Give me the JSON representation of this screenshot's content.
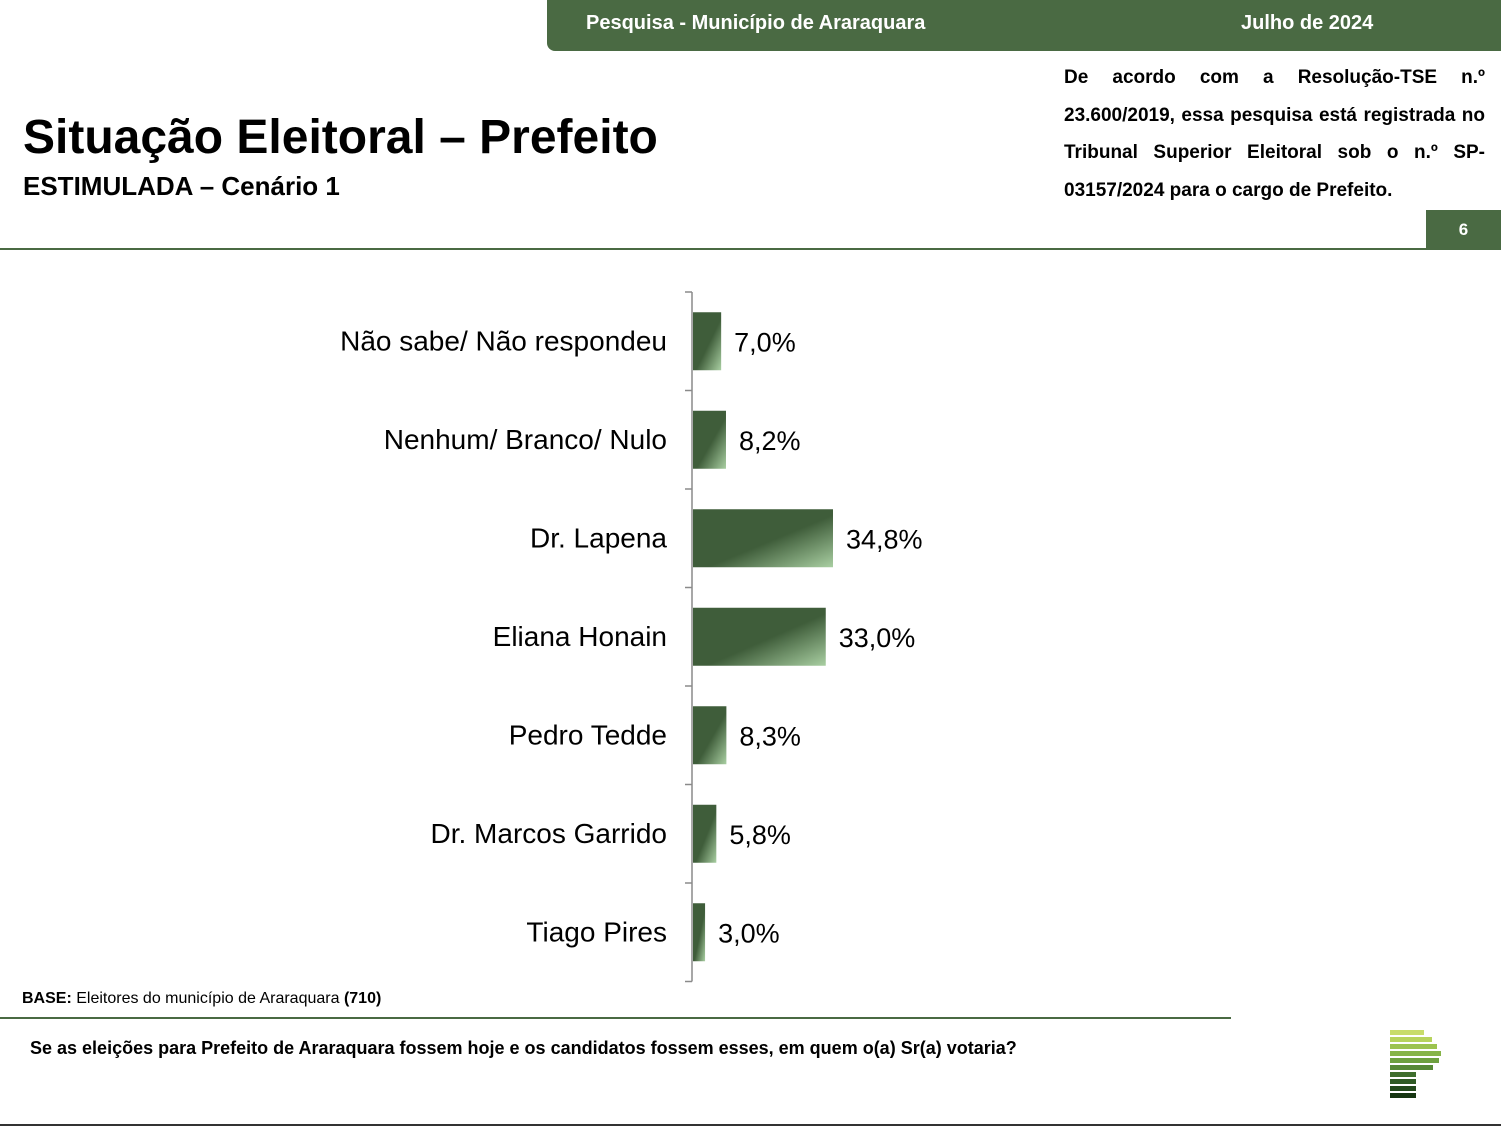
{
  "header": {
    "survey": "Pesquisa - Município de Araraquara",
    "date": "Julho de 2024"
  },
  "title": "Situação Eleitoral – Prefeito",
  "subtitle": "ESTIMULADA – Cenário 1",
  "notice": "De acordo com a Resolução-TSE n.º 23.600/2019, essa pesquisa está registrada no Tribunal Superior Eleitoral sob o n.º SP-03157/2024 para o cargo de Prefeito.",
  "page_number": "6",
  "base": {
    "label": "BASE:",
    "text": "Eleitores do município de Araraquara",
    "count": "(710)"
  },
  "question": "Se as eleições para Prefeito de Araraquara fossem hoje e os candidatos fossem esses, em quem o(a) Sr(a) votaria?",
  "colors": {
    "accent": "#4a6a43",
    "bar_dark": "#3f5d3a",
    "bar_light": "#a9cfa2"
  },
  "chart_data": {
    "type": "bar",
    "orientation": "horizontal",
    "categories": [
      "Não sabe/ Não respondeu",
      "Nenhum/ Branco/ Nulo",
      "Dr. Lapena",
      "Eliana Honain",
      "Pedro Tedde",
      "Dr. Marcos Garrido",
      "Tiago Pires"
    ],
    "values": [
      7.0,
      8.2,
      34.8,
      33.0,
      8.3,
      5.8,
      3.0
    ],
    "value_labels": [
      "7,0%",
      "8,2%",
      "34,8%",
      "33,0%",
      "8,3%",
      "5,8%",
      "3,0%"
    ],
    "grid": false,
    "legend": "none"
  }
}
